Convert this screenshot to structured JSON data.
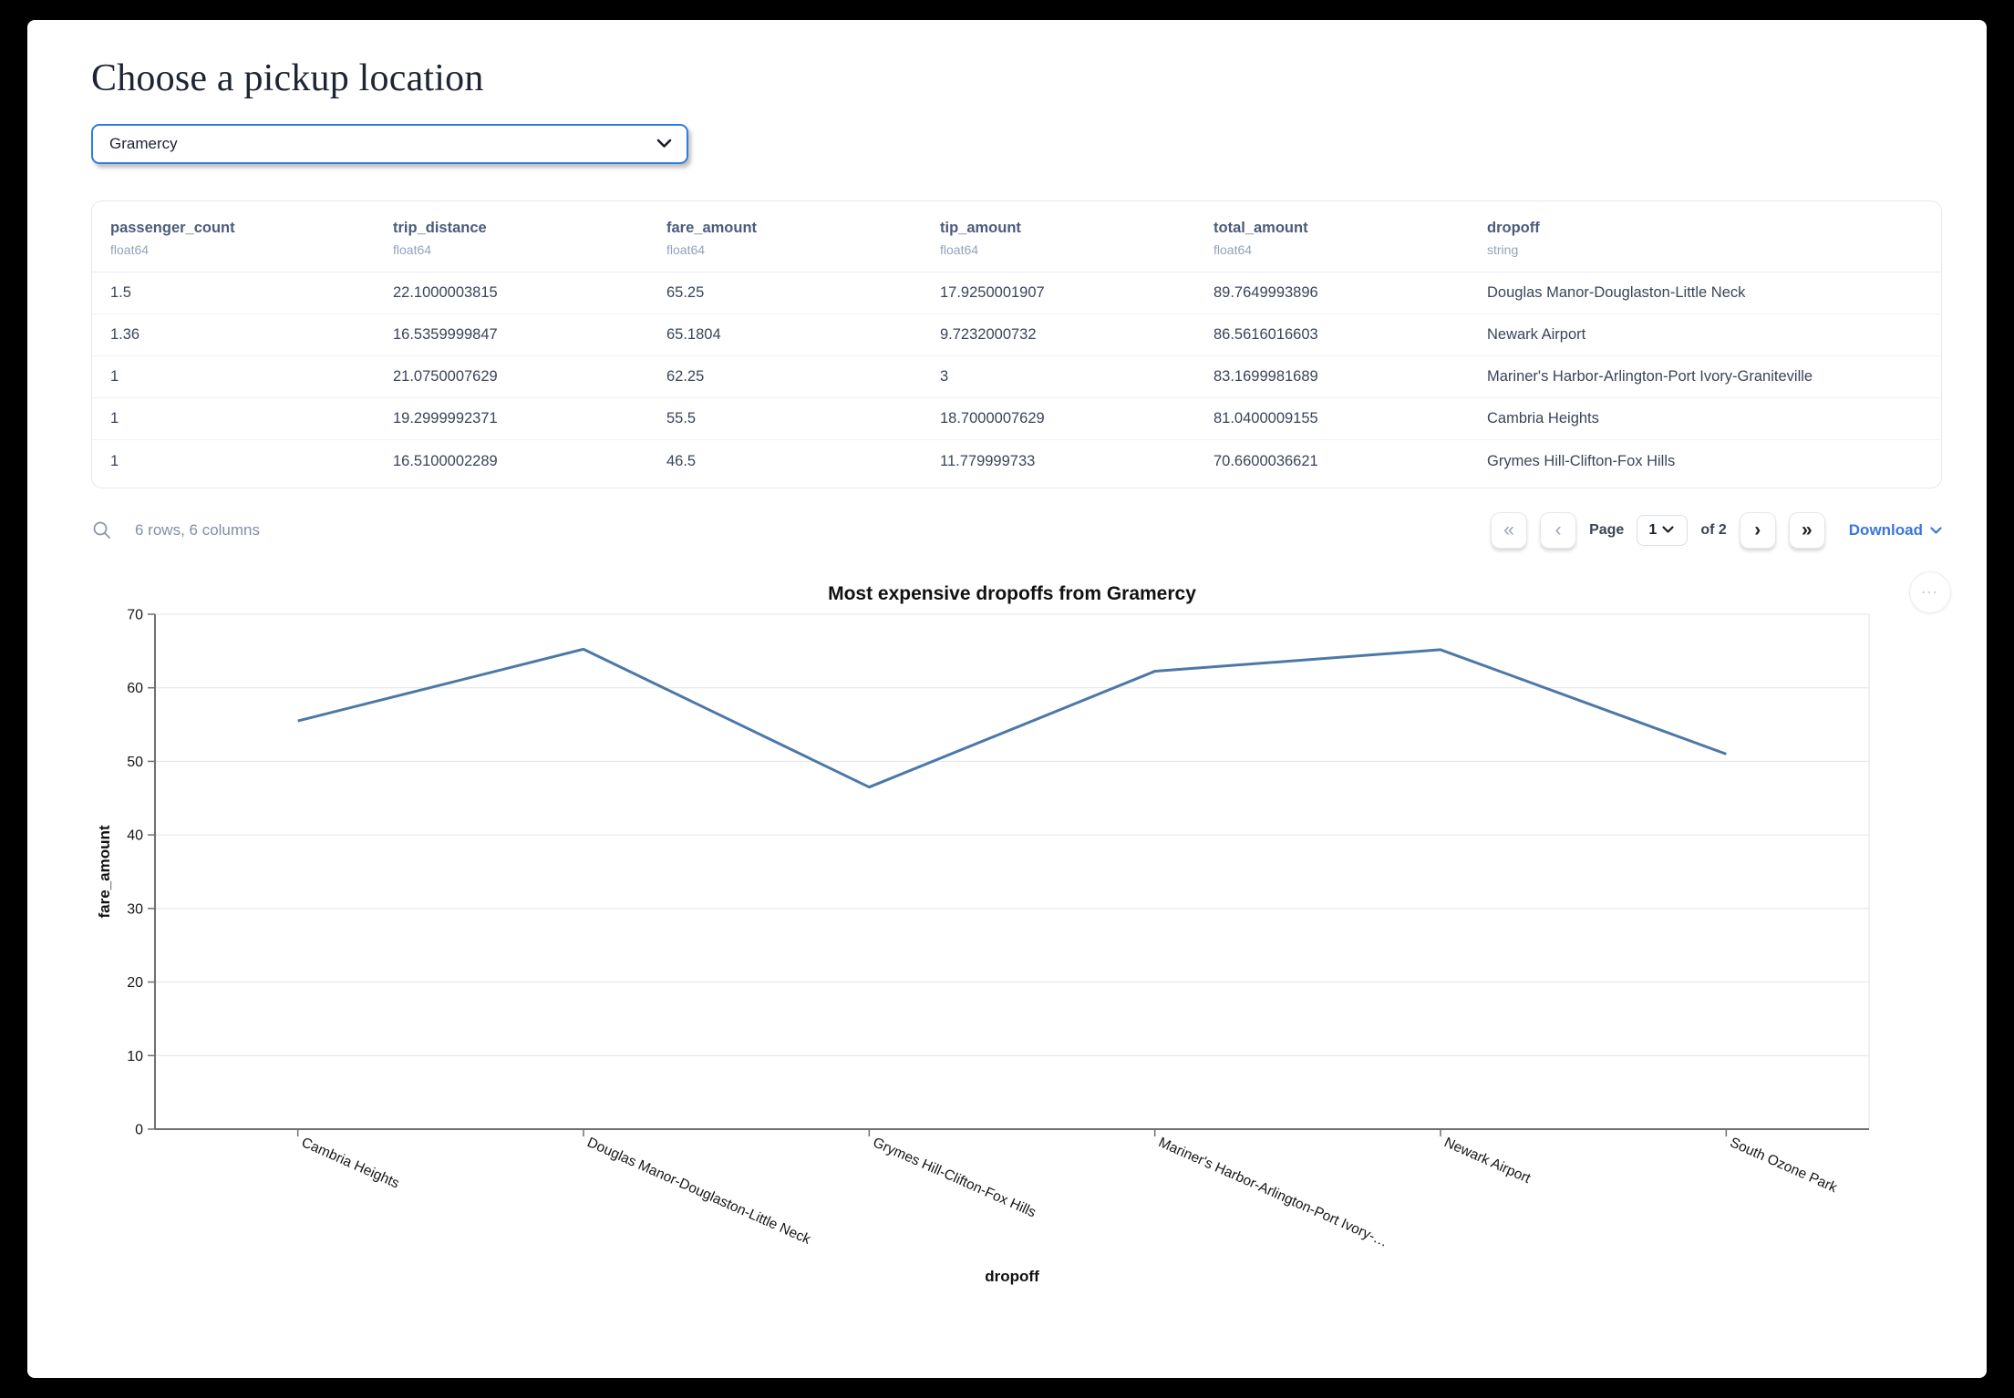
{
  "page": {
    "title": "Choose a pickup location"
  },
  "pickup_select": {
    "value": "Gramercy"
  },
  "table": {
    "columns": [
      {
        "name": "passenger_count",
        "type": "float64"
      },
      {
        "name": "trip_distance",
        "type": "float64"
      },
      {
        "name": "fare_amount",
        "type": "float64"
      },
      {
        "name": "tip_amount",
        "type": "float64"
      },
      {
        "name": "total_amount",
        "type": "float64"
      },
      {
        "name": "dropoff",
        "type": "string"
      }
    ],
    "rows": [
      [
        "1.5",
        "22.1000003815",
        "65.25",
        "17.9250001907",
        "89.7649993896",
        "Douglas Manor-Douglaston-Little Neck"
      ],
      [
        "1.36",
        "16.5359999847",
        "65.1804",
        "9.7232000732",
        "86.5616016603",
        "Newark Airport"
      ],
      [
        "1",
        "21.0750007629",
        "62.25",
        "3",
        "83.1699981689",
        "Mariner's Harbor-Arlington-Port Ivory-Graniteville"
      ],
      [
        "1",
        "19.2999992371",
        "55.5",
        "18.7000007629",
        "81.0400009155",
        "Cambria Heights"
      ],
      [
        "1",
        "16.5100002289",
        "46.5",
        "11.779999733",
        "70.6600036621",
        "Grymes Hill-Clifton-Fox Hills"
      ]
    ],
    "summary": "6 rows, 6 columns"
  },
  "pagination": {
    "page_label": "Page",
    "current_page": "1",
    "of_label": "of 2",
    "download_label": "Download"
  },
  "icons": {
    "first_page": "«",
    "prev_page": "‹",
    "next_page": "›",
    "last_page": "»",
    "chart_menu": "•••"
  },
  "colors": {
    "select_focus_blue": "#2f7ce0",
    "download_blue": "#3b76dd",
    "chart_line": "#4c78a8"
  },
  "chart_data": {
    "type": "line",
    "title": "Most expensive dropoffs from Gramercy",
    "xlabel": "dropoff",
    "ylabel": "fare_amount",
    "categories": [
      "Cambria Heights",
      "Douglas Manor-Douglaston-Little Neck",
      "Grymes Hill-Clifton-Fox Hills",
      "Mariner's Harbor-Arlington-Port Ivory-…",
      "Newark Airport",
      "South Ozone Park"
    ],
    "values": [
      55.5,
      65.25,
      46.5,
      62.25,
      65.18,
      51
    ],
    "ylim": [
      0,
      70
    ],
    "yticks": [
      0,
      10,
      20,
      30,
      40,
      50,
      60,
      70
    ],
    "grid": true,
    "legend": "none",
    "line_color": "#4c78a8"
  }
}
